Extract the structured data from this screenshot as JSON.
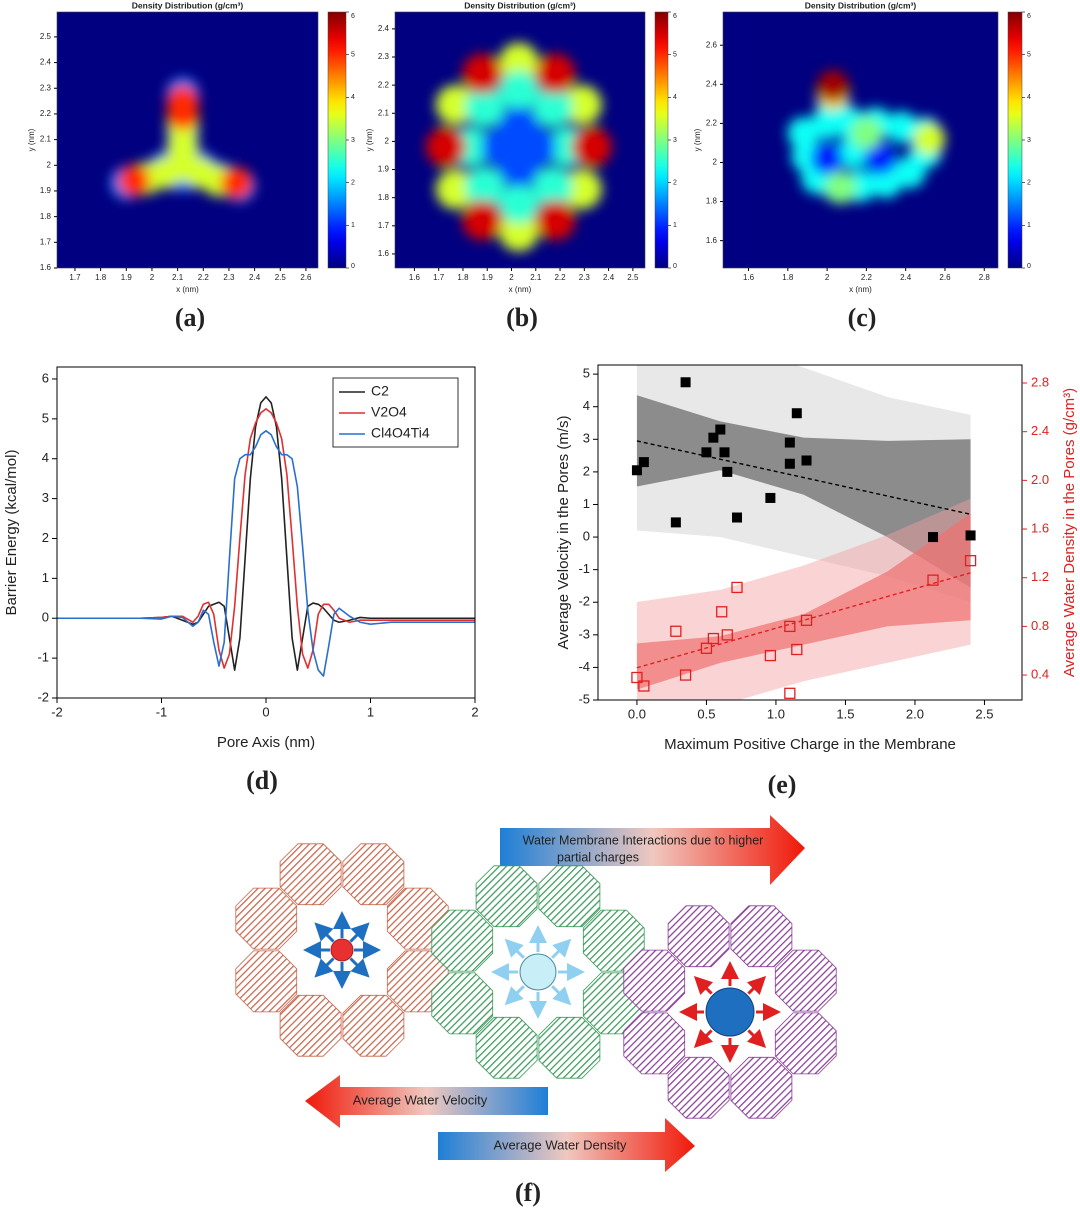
{
  "chart_data": [
    {
      "type": "heatmap",
      "title": "Density Distribution (g/cm³)",
      "xlabel": "x (nm)",
      "ylabel": "y (nm)",
      "xlim": [
        1.63,
        2.647
      ],
      "ylim": [
        1.6,
        2.597
      ],
      "xticks": [
        1.7,
        1.8,
        1.9,
        2,
        2.1,
        2.2,
        2.3,
        2.4,
        2.5,
        2.6
      ],
      "yticks": [
        1.6,
        1.7,
        1.8,
        1.9,
        2,
        2.1,
        2.2,
        2.3,
        2.4,
        2.5
      ],
      "zlim": [
        0,
        6
      ],
      "zticks": [
        0,
        1,
        2,
        3,
        4,
        5,
        6
      ],
      "x": [
        2.12,
        2.12,
        2.12,
        2.12,
        2.05,
        1.98,
        1.9,
        2.19,
        2.26,
        2.34,
        2.12,
        2.12,
        2.12,
        2.12,
        2.05,
        1.98,
        2.19,
        2.26,
        2.12,
        2.12,
        1.93,
        2.33
      ],
      "y": [
        2.28,
        2.2,
        2.12,
        2.04,
        1.99,
        1.95,
        1.93,
        1.99,
        1.95,
        1.92,
        1.96,
        2.15,
        2.07,
        2.0,
        1.97,
        1.95,
        1.97,
        1.94,
        2.25,
        2.2,
        1.94,
        1.93
      ],
      "values": [
        1.5,
        1.5,
        1.5,
        1.5,
        1.5,
        1.5,
        1.5,
        1.5,
        1.5,
        1.5,
        1.5,
        3.5,
        3.5,
        3.5,
        3.5,
        3.5,
        3.5,
        3.5,
        5,
        5,
        5,
        5
      ]
    },
    {
      "type": "heatmap",
      "title": "Density Distribution (g/cm³)",
      "xlabel": "x (nm)",
      "ylabel": "y (nm)",
      "xlim": [
        1.52,
        2.55
      ],
      "ylim": [
        1.55,
        2.46
      ],
      "xticks": [
        1.6,
        1.7,
        1.8,
        1.9,
        2,
        2.1,
        2.2,
        2.3,
        2.4,
        2.5
      ],
      "yticks": [
        1.6,
        1.7,
        1.8,
        1.9,
        2,
        2.1,
        2.2,
        2.3,
        2.4
      ],
      "zlim": [
        0,
        6
      ],
      "zticks": [
        0,
        1,
        2,
        3,
        4,
        5,
        6
      ],
      "x": [
        2.33,
        2.29,
        2.18,
        2.03,
        1.88,
        1.77,
        1.73,
        1.77,
        1.88,
        2.03,
        2.18,
        2.29,
        2.23,
        2.17,
        2.03,
        1.89,
        1.83,
        1.89,
        2.03,
        2.17,
        2.03,
        2.03,
        2.03,
        1.96,
        2.1,
        2.33,
        2.18,
        1.88,
        1.73,
        1.88,
        2.18
      ],
      "y": [
        1.98,
        2.13,
        2.24,
        2.28,
        2.24,
        2.13,
        1.98,
        1.83,
        1.72,
        1.68,
        1.72,
        1.83,
        1.98,
        2.12,
        2.18,
        2.12,
        1.98,
        1.84,
        1.78,
        1.84,
        1.98,
        2.05,
        1.91,
        1.98,
        1.98,
        1.98,
        2.24,
        2.24,
        1.98,
        1.72,
        1.72
      ],
      "values": [
        3.5,
        3.5,
        3.5,
        3.5,
        3.5,
        3.5,
        3.5,
        3.5,
        3.5,
        3.5,
        3.5,
        3.5,
        2.5,
        2.5,
        2.5,
        2.5,
        2.5,
        2.5,
        2.5,
        2.5,
        1.2,
        1.2,
        1.2,
        1.2,
        1.2,
        5.5,
        5.5,
        5.5,
        5.5,
        5.5,
        5.5
      ]
    },
    {
      "type": "heatmap",
      "title": "Density Distribution (g/cm³)",
      "xlabel": "x (nm)",
      "ylabel": "y (nm)",
      "xlim": [
        1.47,
        2.87
      ],
      "ylim": [
        1.46,
        2.77
      ],
      "xticks": [
        1.6,
        1.8,
        2,
        2.2,
        2.4,
        2.6,
        2.8
      ],
      "yticks": [
        1.6,
        1.8,
        2,
        2.2,
        2.4,
        2.6
      ],
      "zlim": [
        0,
        6
      ],
      "zticks": [
        0,
        1,
        2,
        3,
        4,
        5,
        6
      ],
      "x": [
        1.88,
        1.9,
        1.95,
        2.05,
        2.17,
        2.3,
        2.42,
        2.5,
        2.5,
        2.38,
        2.25,
        2.12,
        2.0,
        2.03,
        2.13,
        2.0,
        2.27,
        2.03,
        2.52,
        2.2,
        2.07,
        2.03
      ],
      "y": [
        2.15,
        2.03,
        1.92,
        1.88,
        1.88,
        1.9,
        1.95,
        2.05,
        2.15,
        2.18,
        2.2,
        2.2,
        2.2,
        2.3,
        2.05,
        2.02,
        2.02,
        2.35,
        2.12,
        2.15,
        1.87,
        2.39
      ],
      "values": [
        2.3,
        2.3,
        2.3,
        2.3,
        2.3,
        2.3,
        2.3,
        2.3,
        2.3,
        2.3,
        2.3,
        2.3,
        2.3,
        2.3,
        2.3,
        0.9,
        0.9,
        4,
        3.5,
        3,
        3,
        5.8
      ]
    },
    {
      "type": "line",
      "xlabel": "Pore Axis (nm)",
      "ylabel": "Barrier Energy (kcal/mol)",
      "xlim": [
        -2,
        2
      ],
      "ylim": [
        -2,
        6.3
      ],
      "xticks": [
        -2,
        -1,
        0,
        1,
        2
      ],
      "yticks": [
        -2,
        -1,
        0,
        1,
        2,
        3,
        4,
        5,
        6
      ],
      "legend": "upper right",
      "x": [
        -2,
        -1.5,
        -1.2,
        -1,
        -0.9,
        -0.8,
        -0.7,
        -0.65,
        -0.6,
        -0.55,
        -0.5,
        -0.45,
        -0.4,
        -0.35,
        -0.3,
        -0.25,
        -0.2,
        -0.15,
        -0.1,
        -0.05,
        0,
        0.05,
        0.1,
        0.15,
        0.2,
        0.25,
        0.3,
        0.35,
        0.4,
        0.45,
        0.5,
        0.55,
        0.6,
        0.65,
        0.7,
        0.8,
        0.9,
        1,
        1.2,
        1.5,
        2
      ],
      "series": [
        {
          "name": "C2",
          "color": "#222222",
          "values": [
            0,
            0,
            0,
            0.02,
            0.05,
            -0.05,
            -0.15,
            -0.1,
            0.1,
            0.3,
            0.35,
            0.4,
            0.3,
            -0.5,
            -1.3,
            -0.5,
            1.5,
            3.5,
            4.8,
            5.4,
            5.55,
            5.4,
            4.8,
            3.5,
            1.5,
            -0.5,
            -1.3,
            -0.5,
            0.3,
            0.38,
            0.35,
            0.25,
            0.1,
            -0.05,
            -0.1,
            -0.05,
            0.02,
            0,
            0,
            0,
            0
          ]
        },
        {
          "name": "V2O4",
          "color": "#e03030",
          "values": [
            0,
            0,
            0,
            0.02,
            0.05,
            0.05,
            -0.1,
            0.05,
            0.35,
            0.4,
            0.1,
            -0.8,
            -1.25,
            -0.9,
            0.3,
            2.0,
            3.6,
            4.5,
            4.9,
            5.15,
            5.25,
            5.15,
            4.9,
            4.5,
            3.6,
            2.0,
            0.3,
            -0.9,
            -1.25,
            -0.8,
            0.1,
            0.35,
            0.35,
            0.2,
            0,
            -0.1,
            -0.05,
            -0.05,
            -0.05,
            -0.05,
            -0.05
          ]
        },
        {
          "name": "Cl4O4Ti4",
          "color": "#2a6fd0",
          "values": [
            0,
            0,
            0,
            -0.02,
            0.05,
            0.02,
            -0.2,
            -0.1,
            0.2,
            0.1,
            -0.6,
            -1.2,
            -0.6,
            1.5,
            3.5,
            4.0,
            4.1,
            4.1,
            4.3,
            4.6,
            4.7,
            4.6,
            4.3,
            4.1,
            4.1,
            4.0,
            3.3,
            1.8,
            0.2,
            -0.8,
            -1.3,
            -1.45,
            -0.7,
            0.1,
            0.25,
            0.05,
            -0.1,
            -0.15,
            -0.1,
            -0.1,
            -0.1
          ]
        }
      ]
    },
    {
      "type": "scatter",
      "xlabel": "Maximum Positive Charge in the Membrane",
      "ylabel": "Average Velocity in the Pores (m/s)",
      "y2label": "Average Water Density in the Pores (g/cm³)",
      "xlim": [
        -0.28,
        2.77
      ],
      "ylim": [
        -5,
        5.28
      ],
      "y2lim": [
        0.195,
        2.948
      ],
      "xticks": [
        {
          "value": 0,
          "label": "0.0"
        },
        0.5,
        {
          "value": 1,
          "label": "1.0"
        },
        1.5,
        {
          "value": 2,
          "label": "2.0"
        },
        2.5
      ],
      "yticks": [
        -5,
        -4,
        -3,
        -2,
        -1,
        0,
        1,
        2,
        3,
        4,
        5
      ],
      "y2ticks": [
        0.4,
        0.8,
        1.2,
        1.6,
        {
          "value": 2,
          "label": "2.0"
        },
        2.4,
        2.8
      ],
      "bands": [
        {
          "color": "#d9d9d9",
          "opacity": 0.6,
          "x": [
            0,
            0.6,
            1.2,
            1.8,
            2.4
          ],
          "upper": [
            6.5,
            6.0,
            5.2,
            4.3,
            3.75
          ],
          "lower": [
            0.2,
            0.0,
            -0.6,
            -1.2,
            -2.0
          ]
        },
        {
          "color": "#6e6e6e",
          "opacity": 0.75,
          "x": [
            0,
            0.6,
            1.2,
            1.8,
            2.4
          ],
          "upper": [
            4.35,
            3.55,
            3.05,
            2.95,
            3.0
          ],
          "lower": [
            1.55,
            2.05,
            1.3,
            0.0,
            -1.55
          ]
        },
        {
          "color": "#f4a0a0",
          "opacity": 0.45,
          "axis": "y2",
          "x": [
            0,
            0.6,
            1.2,
            1.8,
            2.4
          ],
          "upper": [
            1.0,
            1.1,
            1.3,
            1.55,
            1.85
          ],
          "lower": [
            -0.05,
            0.15,
            0.35,
            0.5,
            0.65
          ]
        },
        {
          "color": "#f07070",
          "opacity": 0.7,
          "axis": "y2",
          "x": [
            0,
            0.6,
            1.2,
            1.8,
            2.4
          ],
          "upper": [
            0.66,
            0.72,
            0.9,
            1.25,
            1.73
          ],
          "lower": [
            0.28,
            0.5,
            0.65,
            0.8,
            0.85
          ]
        }
      ],
      "fits": [
        {
          "color": "#000000",
          "x": [
            0,
            2.4
          ],
          "values": [
            2.95,
            0.7
          ]
        },
        {
          "color": "#e02020",
          "axis": "y2",
          "x": [
            0,
            2.4
          ],
          "values": [
            0.46,
            1.24
          ]
        }
      ],
      "series": [
        {
          "color": "#000000",
          "marker": "filled-square",
          "x": [
            0,
            0.05,
            0.28,
            0.35,
            0.5,
            0.55,
            0.6,
            0.63,
            0.65,
            0.72,
            0.96,
            1.1,
            1.1,
            1.15,
            1.22,
            2.13,
            2.4
          ],
          "values": [
            2.05,
            2.3,
            0.45,
            4.75,
            2.6,
            3.05,
            3.3,
            2.6,
            2.0,
            0.6,
            1.2,
            2.9,
            2.25,
            3.8,
            2.35,
            0.0,
            0.05
          ]
        },
        {
          "color": "#e02020",
          "marker": "open-square",
          "axis": "y2",
          "x": [
            0,
            0.05,
            0.28,
            0.35,
            0.5,
            0.55,
            0.61,
            0.65,
            0.72,
            0.96,
            1.1,
            1.1,
            1.15,
            1.22,
            2.13,
            2.4
          ],
          "values": [
            0.38,
            0.31,
            0.76,
            0.4,
            0.62,
            0.7,
            0.92,
            0.73,
            1.12,
            0.56,
            0.8,
            0.25,
            0.61,
            0.85,
            1.18,
            1.34
          ]
        }
      ]
    }
  ],
  "panel_labels": [
    "(a)",
    "(b)",
    "(c)",
    "(d)",
    "(e)",
    "(f)"
  ],
  "diagram": {
    "interaction_arrow": [
      "Water Membrane Interactions due to higher",
      "partial charges"
    ],
    "velocity_arrow": "Average Water Velocity",
    "density_arrow": "Average Water Density"
  }
}
